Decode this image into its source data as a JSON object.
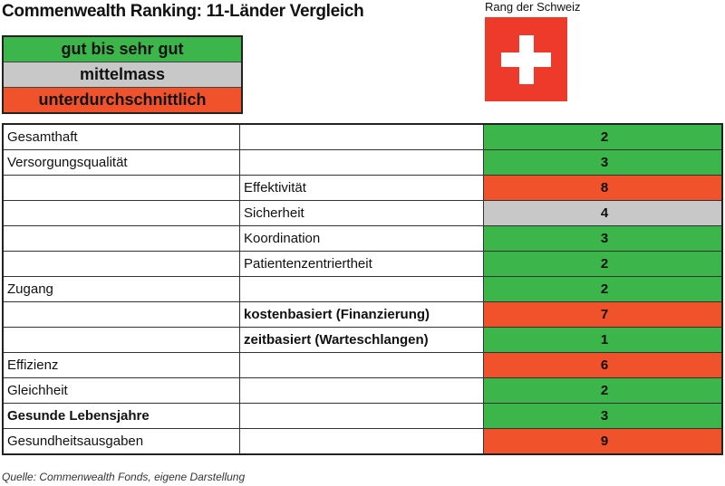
{
  "title": "Commenwealth Ranking: 11-Länder Vergleich",
  "legend": [
    {
      "label": "gut bis sehr gut",
      "color": "#3cb54a"
    },
    {
      "label": "mittelmass",
      "color": "#c8c8c8"
    },
    {
      "label": "unterdurchschnittlich",
      "color": "#f0522b"
    }
  ],
  "flag": {
    "caption": "Rang der Schweiz",
    "red": "#ee3a2b",
    "cross": "#ffffff"
  },
  "rows": [
    {
      "category": "Gesamthaft",
      "sub": "",
      "rank": "2",
      "status": "good"
    },
    {
      "category": "Versorgungsqualität",
      "sub": "",
      "rank": "3",
      "status": "good"
    },
    {
      "category": "",
      "sub": "Effektivität",
      "rank": "8",
      "status": "bad"
    },
    {
      "category": "",
      "sub": "Sicherheit",
      "rank": "4",
      "status": "mid"
    },
    {
      "category": "",
      "sub": "Koordination",
      "rank": "3",
      "status": "good"
    },
    {
      "category": "",
      "sub": "Patientenzentriertheit",
      "rank": "2",
      "status": "good"
    },
    {
      "category": "Zugang",
      "sub": "",
      "rank": "2",
      "status": "good"
    },
    {
      "category": "",
      "sub": "kostenbasiert (Finanzierung)",
      "sub_bold": true,
      "rank": "7",
      "status": "bad"
    },
    {
      "category": "",
      "sub": "zeitbasiert (Warteschlangen)",
      "sub_bold": true,
      "rank": "1",
      "status": "good"
    },
    {
      "category": "Effizienz",
      "sub": "",
      "rank": "6",
      "status": "bad"
    },
    {
      "category": "Gleichheit",
      "sub": "",
      "rank": "2",
      "status": "good"
    },
    {
      "category": "Gesunde Lebensjahre",
      "category_bold": true,
      "sub": "",
      "rank": "3",
      "status": "good"
    },
    {
      "category": "Gesundheitsausgaben",
      "sub": "",
      "rank": "9",
      "status": "bad"
    }
  ],
  "status_colors": {
    "good": "#3cb54a",
    "mid": "#c8c8c8",
    "bad": "#f0522b"
  },
  "source": "Quelle: Commenwealth Fonds, eigene Darstellung"
}
